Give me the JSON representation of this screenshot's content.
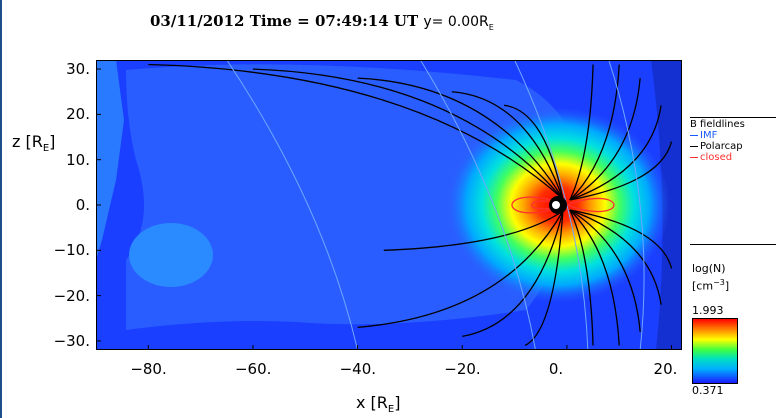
{
  "title": {
    "date": "03/11/2012",
    "time_label": "Time = 07:49:14 UT",
    "slice_label": "y= 0.00R",
    "slice_sub": "E"
  },
  "chart_data": {
    "type": "heatmap",
    "xlabel": "x [R",
    "xlabel_sub": "E",
    "xlabel_end": "]",
    "ylabel": "z [R",
    "ylabel_sub": "E",
    "ylabel_end": "]",
    "xlim": [
      -90,
      22
    ],
    "ylim": [
      -32,
      32
    ],
    "x_ticks": [
      -80,
      -60,
      -40,
      -20,
      0,
      20
    ],
    "x_tick_labels": [
      "−80.",
      "−60.",
      "−40.",
      "−20.",
      "0.",
      "20."
    ],
    "y_ticks": [
      30,
      20,
      10,
      0,
      -10,
      -20,
      -30
    ],
    "y_tick_labels": [
      "30.",
      "20.",
      "10.",
      "0.",
      "−10.",
      "−20.",
      "−30."
    ],
    "colorbar": {
      "label_line1": "log(N)",
      "label_line2": "[cm",
      "label_line2_sup": "−3",
      "label_line2_end": "]",
      "max": "1.993",
      "min": "0.371"
    },
    "legend": {
      "title": "B fieldlines",
      "entries": [
        {
          "label": "IMF",
          "color": "#1a5cff"
        },
        {
          "label": "Polarcap",
          "color": "#000000"
        },
        {
          "label": "closed",
          "color": "#ff3030"
        }
      ]
    }
  }
}
